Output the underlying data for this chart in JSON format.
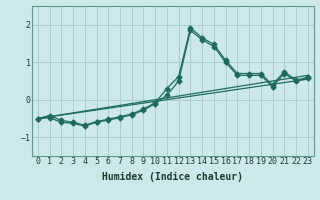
{
  "xlabel": "Humidex (Indice chaleur)",
  "bg_color": "#cce8ea",
  "grid_color": "#aacdd0",
  "line_color": "#1e6b5e",
  "xlim": [
    -0.5,
    23.5
  ],
  "ylim": [
    -1.5,
    2.5
  ],
  "yticks": [
    -1,
    0,
    1,
    2
  ],
  "xticks": [
    0,
    1,
    2,
    3,
    4,
    5,
    6,
    7,
    8,
    9,
    10,
    11,
    12,
    13,
    14,
    15,
    16,
    17,
    18,
    19,
    20,
    21,
    22,
    23
  ],
  "xs_main": [
    0,
    1,
    2,
    3,
    4,
    5,
    6,
    7,
    8,
    9,
    10,
    11,
    12,
    13,
    14,
    15,
    16,
    17,
    18,
    19,
    20,
    21,
    22,
    23
  ],
  "ys_line1": [
    -0.5,
    -0.42,
    -0.55,
    -0.6,
    -0.68,
    -0.58,
    -0.52,
    -0.45,
    -0.38,
    -0.25,
    -0.08,
    0.3,
    0.62,
    1.92,
    1.65,
    1.48,
    1.05,
    0.7,
    0.7,
    0.7,
    0.4,
    0.75,
    0.52,
    0.6
  ],
  "ys_line2": [
    -0.5,
    -0.48,
    -0.6,
    -0.63,
    -0.7,
    -0.6,
    -0.54,
    -0.48,
    -0.4,
    -0.28,
    -0.1,
    0.12,
    0.5,
    1.85,
    1.6,
    1.42,
    1.0,
    0.65,
    0.65,
    0.65,
    0.35,
    0.7,
    0.5,
    0.57
  ],
  "straight_line1": [
    -0.5,
    0.65
  ],
  "straight_line2": [
    -0.5,
    0.55
  ],
  "marker_size": 2.5,
  "line_width": 0.9,
  "xlabel_fontsize": 7,
  "tick_fontsize": 6
}
